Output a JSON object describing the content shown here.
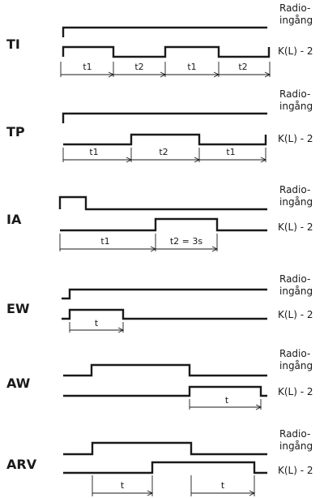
{
  "labels": {
    "radio_line1": "Radio-",
    "radio_line2": "ingång",
    "output": "K(L) - 2"
  },
  "diagrams": [
    {
      "mode": "TI",
      "interval_labels": [
        "t1",
        "t2",
        "t1",
        "t2"
      ]
    },
    {
      "mode": "TP",
      "interval_labels": [
        "t1",
        "t2",
        "t1"
      ]
    },
    {
      "mode": "IA",
      "interval_labels": [
        "t1",
        "t2 = 3s"
      ]
    },
    {
      "mode": "EW",
      "interval_labels": [
        "t"
      ]
    },
    {
      "mode": "AW",
      "interval_labels": [
        "t"
      ]
    },
    {
      "mode": "ARV",
      "interval_labels": [
        "t",
        "t"
      ]
    }
  ]
}
